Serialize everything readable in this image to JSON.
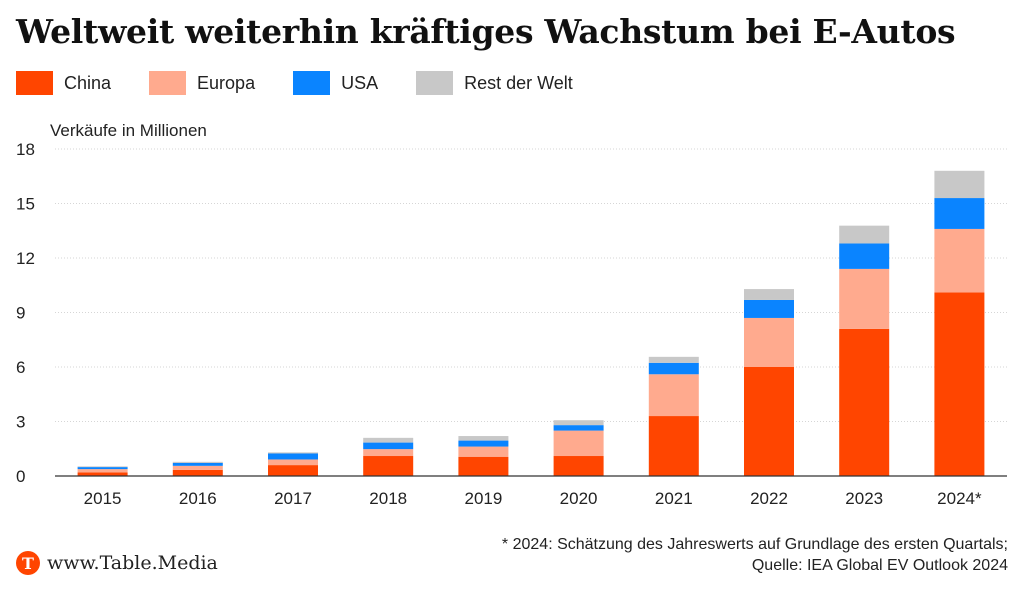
{
  "title": "Weltweit weiterhin kräftiges Wachstum bei E-Autos",
  "legend": [
    {
      "label": "China",
      "color": "#ff4500"
    },
    {
      "label": "Europa",
      "color": "#ffaa8e"
    },
    {
      "label": "USA",
      "color": "#0a84ff"
    },
    {
      "label": "Rest der Welt",
      "color": "#c8c8c8"
    }
  ],
  "chart_data": {
    "type": "bar",
    "stacked": true,
    "ylabel": "Verkäufe in Millionen",
    "ylim": [
      0,
      18
    ],
    "yticks": [
      0,
      3,
      6,
      9,
      12,
      15,
      18
    ],
    "grid": true,
    "legend_position": "top-left",
    "categories": [
      "2015",
      "2016",
      "2017",
      "2018",
      "2019",
      "2020",
      "2021",
      "2022",
      "2023",
      "2024*"
    ],
    "series": [
      {
        "name": "China",
        "color": "#ff4500",
        "values": [
          0.2,
          0.34,
          0.6,
          1.1,
          1.06,
          1.1,
          3.3,
          6.0,
          8.1,
          10.1
        ]
      },
      {
        "name": "Europa",
        "color": "#ffaa8e",
        "values": [
          0.18,
          0.22,
          0.31,
          0.38,
          0.56,
          1.4,
          2.3,
          2.7,
          3.3,
          3.5
        ]
      },
      {
        "name": "USA",
        "color": "#0a84ff",
        "values": [
          0.11,
          0.16,
          0.33,
          0.36,
          0.33,
          0.3,
          0.63,
          0.99,
          1.4,
          1.7
        ]
      },
      {
        "name": "Rest der Welt",
        "color": "#c8c8c8",
        "values": [
          0.04,
          0.06,
          0.06,
          0.26,
          0.25,
          0.27,
          0.33,
          0.6,
          0.98,
          1.5
        ]
      }
    ]
  },
  "footnote": {
    "line1": "* 2024: Schätzung des Jahreswerts auf Grundlage des ersten Quartals;",
    "line2": "Quelle: IEA Global EV Outlook 2024"
  },
  "brand": {
    "logo_letter": "T",
    "name": "www.Table.Media",
    "color": "#ff4500"
  }
}
